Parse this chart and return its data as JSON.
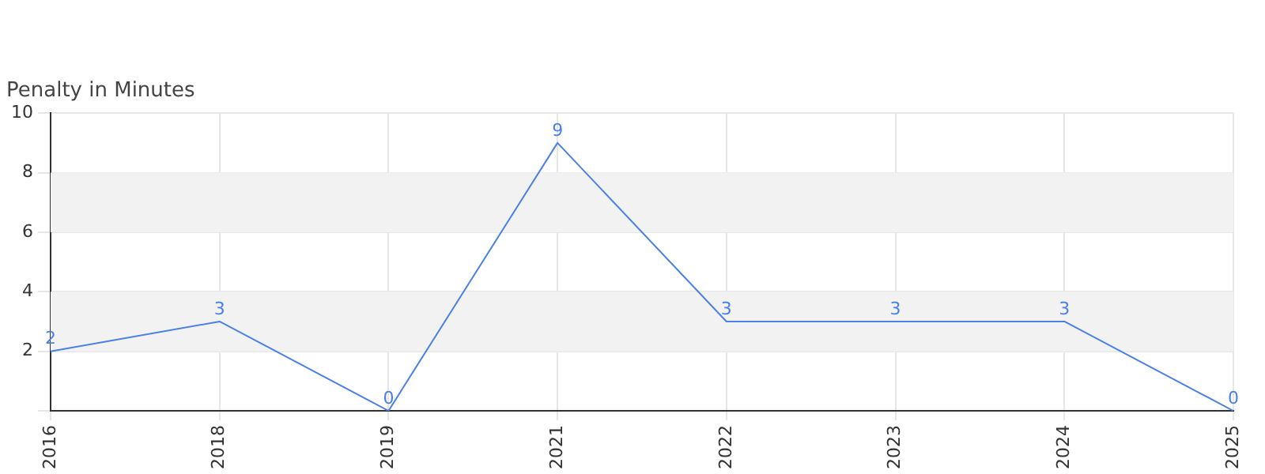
{
  "chart_data": {
    "type": "line",
    "title": "Penalty in Minutes",
    "categories": [
      "2016",
      "2018",
      "2019",
      "2021",
      "2022",
      "2023",
      "2024",
      "2025"
    ],
    "series": [
      {
        "color": "#4a80e8",
        "values": [
          2,
          3,
          0,
          9,
          3,
          3,
          3,
          0
        ]
      }
    ],
    "ylim": [
      0,
      10
    ],
    "yticks": [
      {
        "value": 0,
        "label": null
      },
      2,
      4,
      6,
      8,
      10
    ],
    "bands": [
      {
        "axis": "y",
        "from": 2,
        "to": 4,
        "color": "#f2f2f2"
      },
      {
        "axis": "y",
        "from": 6,
        "to": 8,
        "color": "#f2f2f2"
      }
    ],
    "grid": true,
    "legend": false,
    "marker": "none",
    "line_style": "solid",
    "data_labels": true
  }
}
